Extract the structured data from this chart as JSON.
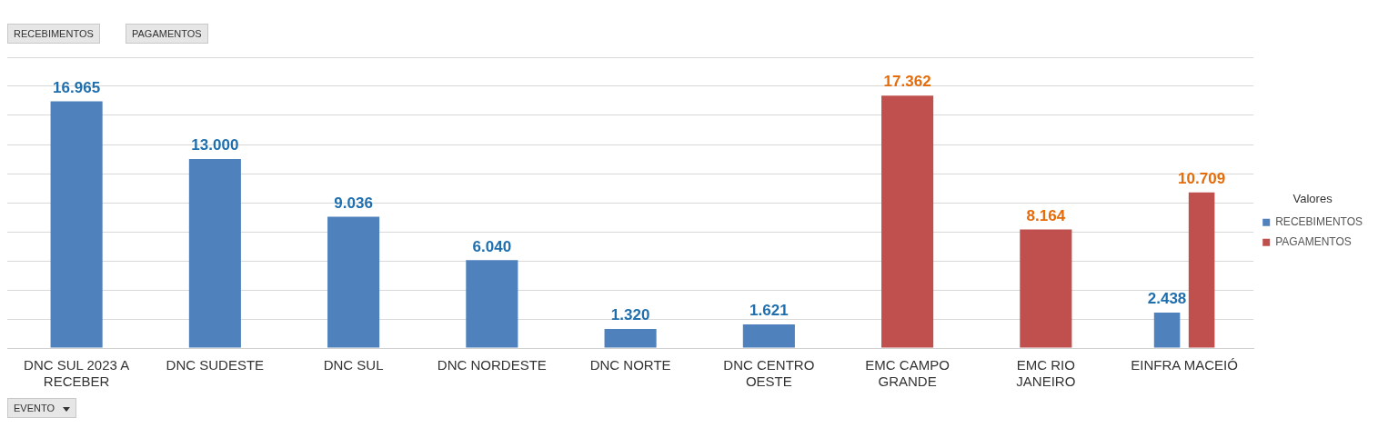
{
  "chart_data": {
    "type": "bar",
    "categories": [
      "DNC SUL 2023 A RECEBER",
      "DNC SUDESTE",
      "DNC SUL",
      "DNC NORDESTE",
      "DNC NORTE",
      "DNC CENTRO OESTE",
      "EMC CAMPO GRANDE",
      "EMC RIO JANEIRO",
      "EINFRA MACEIÓ"
    ],
    "series": [
      {
        "name": "RECEBIMENTOS",
        "color": "#4f81bd",
        "values": [
          16965,
          13000,
          9036,
          6040,
          1320,
          1621,
          null,
          null,
          2438
        ],
        "value_labels": [
          "16.965",
          "13.000",
          "9.036",
          "6.040",
          "1.320",
          "1.621",
          null,
          null,
          "2.438"
        ]
      },
      {
        "name": "PAGAMENTOS",
        "color": "#c0504d",
        "values": [
          null,
          null,
          null,
          null,
          null,
          null,
          17362,
          8164,
          10709
        ],
        "value_labels": [
          null,
          null,
          null,
          null,
          null,
          null,
          "17.362",
          "8.164",
          "10.709"
        ]
      }
    ],
    "ylim": [
      0,
      20000
    ],
    "yticks": [
      {
        "value": 0,
        "label": null
      },
      {
        "value": 2000,
        "label": null
      },
      {
        "value": 4000,
        "label": null
      },
      {
        "value": 6000,
        "label": null
      },
      {
        "value": 8000,
        "label": null
      },
      {
        "value": 10000,
        "label": null
      },
      {
        "value": 12000,
        "label": null
      },
      {
        "value": 14000,
        "label": null
      },
      {
        "value": 16000,
        "label": null
      },
      {
        "value": 18000,
        "label": null
      },
      {
        "value": 20000,
        "label": null
      }
    ],
    "tick_labels": "x",
    "grid": "y",
    "legend": "right",
    "legend_title": "Valores",
    "annotations": [
      "RECEBIMENTOS",
      "PAGAMENTOS",
      "EVENTO"
    ]
  }
}
